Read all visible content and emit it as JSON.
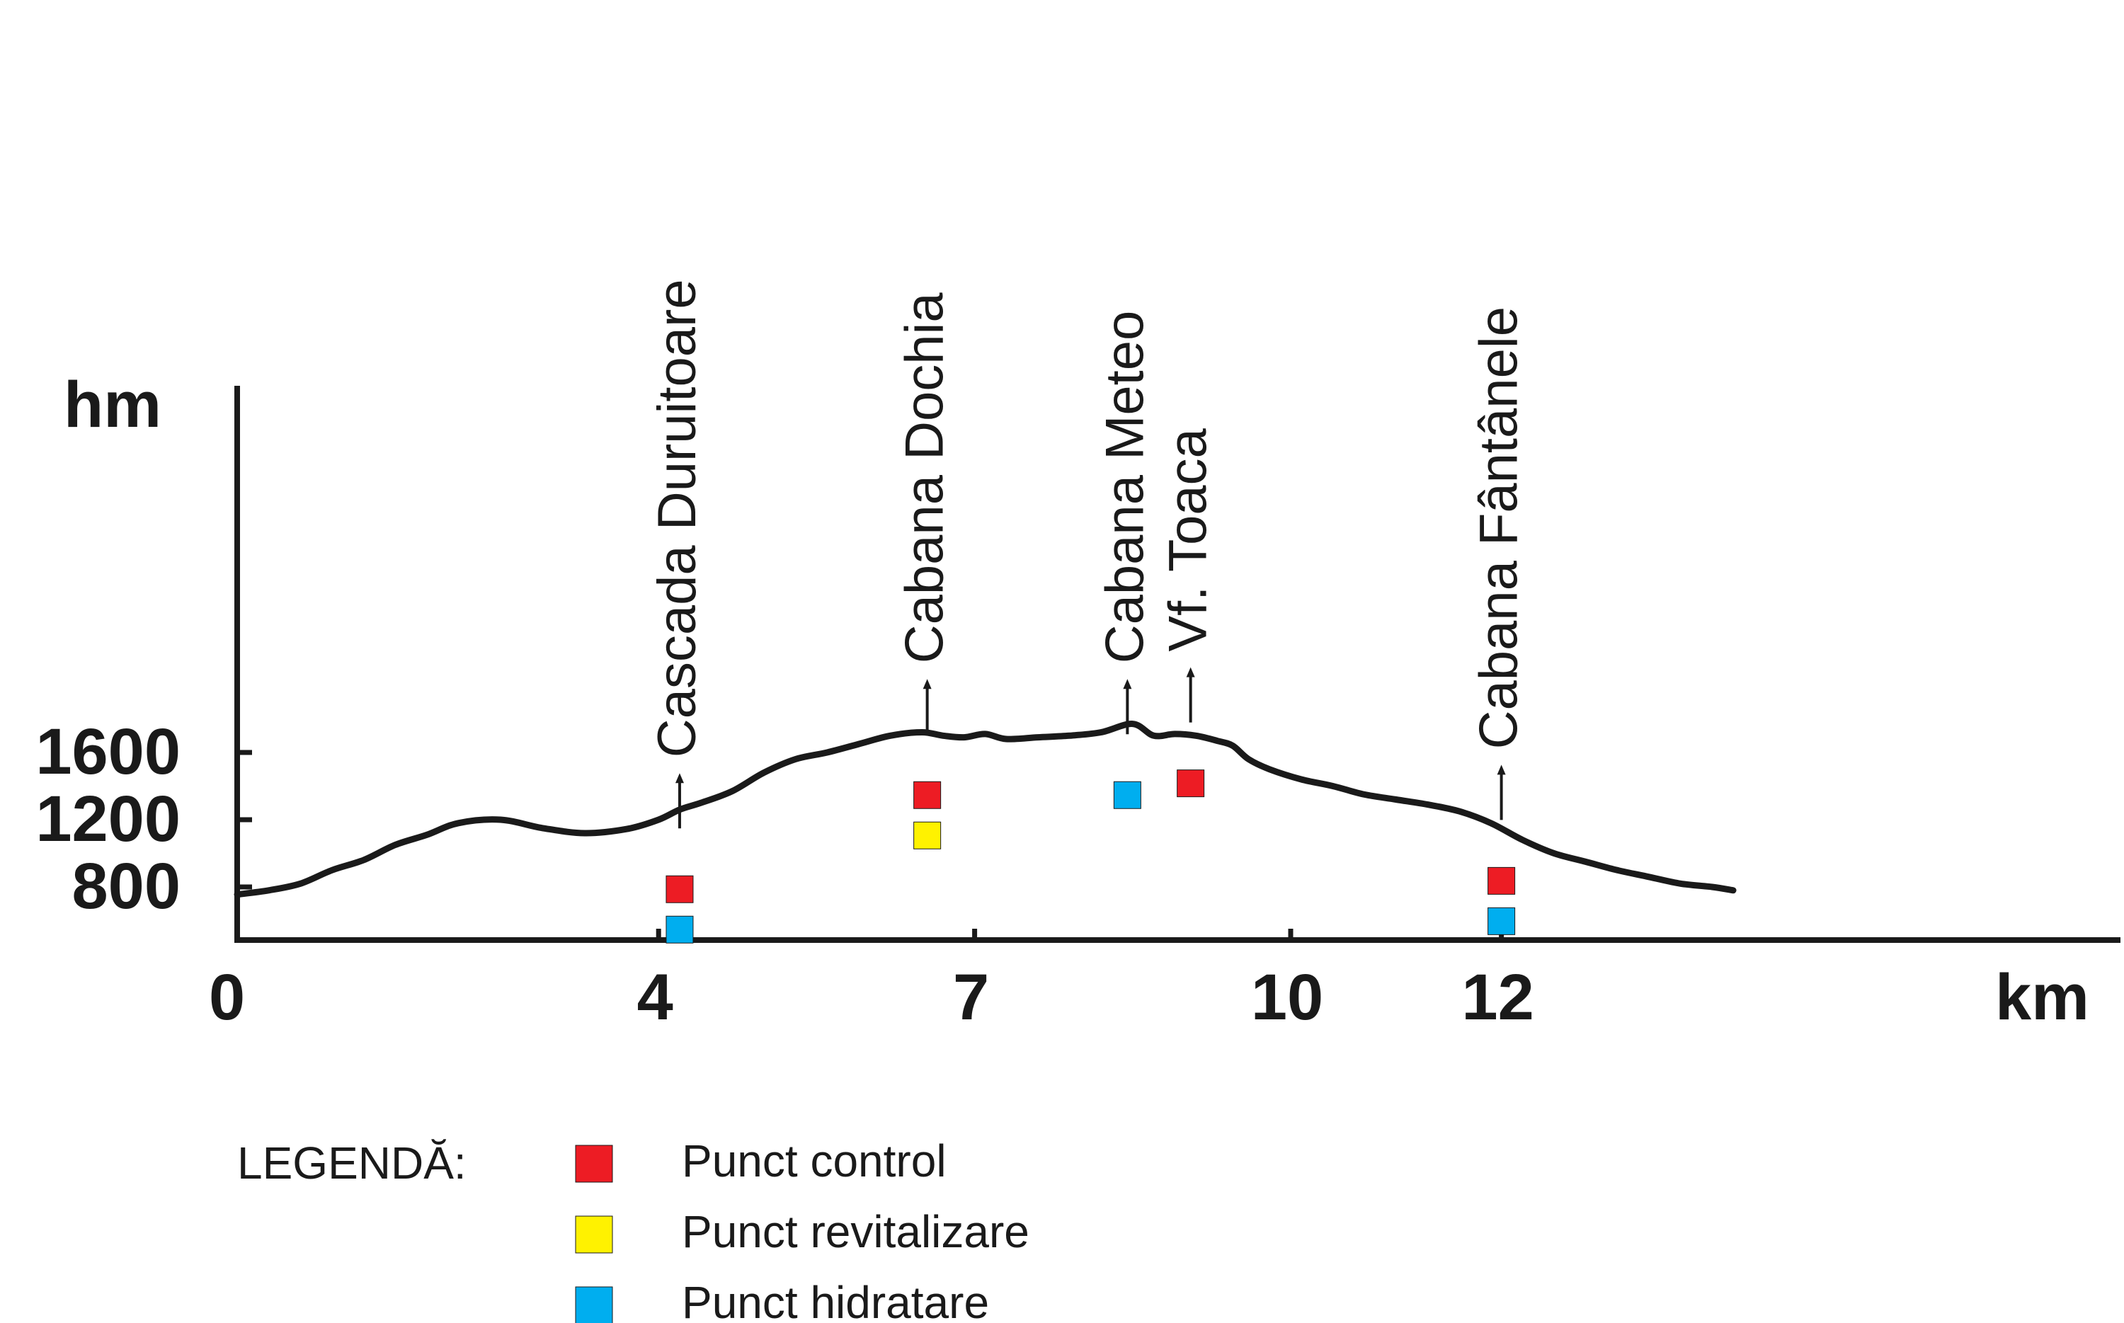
{
  "chart_data": {
    "type": "area",
    "title": "",
    "xlabel": "km",
    "ylabel": "hm",
    "xlim": [
      0,
      14.2
    ],
    "ylim": [
      680,
      1900
    ],
    "x_ticks": [
      0,
      4,
      7,
      10,
      12
    ],
    "y_ticks": [
      800,
      1200,
      1600
    ],
    "grid": false,
    "series": [
      {
        "color": "#1a1a1a",
        "x": [
          0,
          0.3,
          0.6,
          0.9,
          1.2,
          1.5,
          1.8,
          2.1,
          2.5,
          2.9,
          3.3,
          3.7,
          4.0,
          4.2,
          4.4,
          4.7,
          5.0,
          5.3,
          5.6,
          5.9,
          6.2,
          6.5,
          6.7,
          6.9,
          7.1,
          7.3,
          7.6,
          7.9,
          8.2,
          8.5,
          8.7,
          8.9,
          9.1,
          9.3,
          9.45,
          9.6,
          9.8,
          10.1,
          10.4,
          10.7,
          11.0,
          11.3,
          11.6,
          11.9,
          12.2,
          12.5,
          12.8,
          13.1,
          13.4,
          13.7,
          14.0,
          14.2
        ],
        "y": [
          755,
          780,
          820,
          900,
          960,
          1050,
          1110,
          1180,
          1200,
          1150,
          1120,
          1145,
          1200,
          1260,
          1300,
          1370,
          1480,
          1560,
          1600,
          1650,
          1700,
          1720,
          1700,
          1690,
          1710,
          1680,
          1690,
          1700,
          1720,
          1770,
          1700,
          1710,
          1700,
          1670,
          1640,
          1560,
          1500,
          1440,
          1400,
          1350,
          1320,
          1290,
          1250,
          1180,
          1080,
          1000,
          950,
          900,
          860,
          820,
          800,
          780
        ]
      }
    ],
    "annotations": [
      {
        "label": "Cascada Duruitoare",
        "x": 4.2,
        "y": 1140
      },
      {
        "label": "Cabana Dochia",
        "x": 6.55,
        "y": 1700
      },
      {
        "label": "Cabana Meteo",
        "x": 8.45,
        "y": 1700
      },
      {
        "label": "Vf. Toaca",
        "x": 9.05,
        "y": 1770
      },
      {
        "label": "Cabana Fântânele",
        "x": 12.0,
        "y": 1190
      }
    ],
    "markers": [
      {
        "x": 4.2,
        "kinds": [
          "control",
          "hidratare"
        ]
      },
      {
        "x": 6.55,
        "kinds": [
          "control",
          "revitalizare"
        ]
      },
      {
        "x": 8.45,
        "kinds": [
          "hidratare"
        ]
      },
      {
        "x": 9.05,
        "kinds": [
          "control"
        ]
      },
      {
        "x": 12.0,
        "kinds": [
          "control",
          "hidratare"
        ]
      }
    ]
  },
  "legend": {
    "title": "LEGENDĂ:",
    "items": [
      {
        "key": "control",
        "label": "Punct control",
        "color": "#ed1c24"
      },
      {
        "key": "revitalizare",
        "label": "Punct revitalizare",
        "color": "#fff200"
      },
      {
        "key": "hidratare",
        "label": "Punct hidratare",
        "color": "#00aeef"
      }
    ]
  }
}
